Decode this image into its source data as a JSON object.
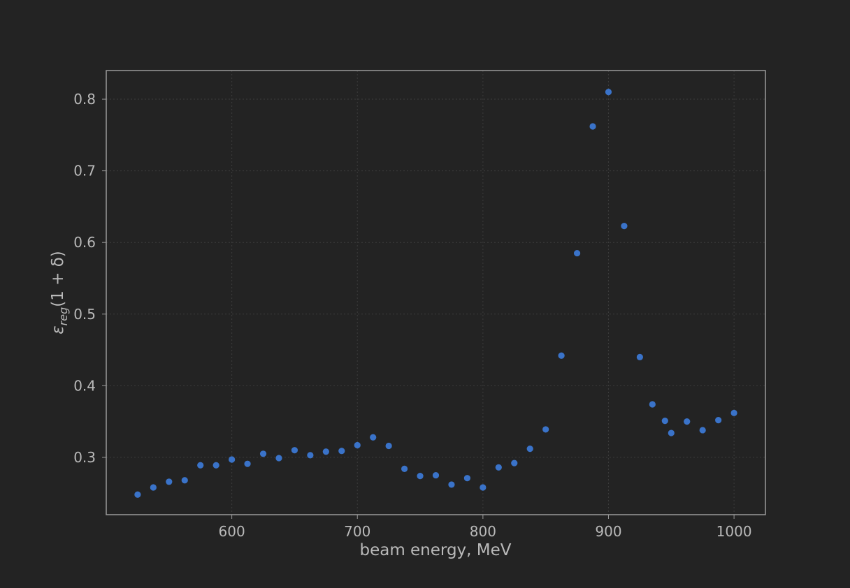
{
  "chart_data": {
    "type": "scatter",
    "xlabel": "beam energy, MeV",
    "ylabel": "ε_reg(1 + δ)",
    "ylabel_parts": {
      "base": "ε",
      "subscript": "reg",
      "rest": "(1 + δ)"
    },
    "xlim": [
      500,
      1025
    ],
    "ylim": [
      0.22,
      0.84
    ],
    "xticks": [
      600,
      700,
      800,
      900,
      1000
    ],
    "xtick_labels": [
      "600",
      "700",
      "800",
      "900",
      "1000"
    ],
    "yticks": [
      0.3,
      0.4,
      0.5,
      0.6,
      0.7,
      0.8
    ],
    "ytick_labels": [
      "0.3",
      "0.4",
      "0.5",
      "0.6",
      "0.7",
      "0.8"
    ],
    "grid": true,
    "colors": {
      "points": "#3a73c9",
      "background": "#232323",
      "text": "#b9b9b9",
      "frame": "#9a9a9a"
    },
    "series": [
      {
        "x": [
          525,
          537.5,
          550,
          562.5,
          575,
          587.5,
          600,
          612.5,
          625,
          637.5,
          650,
          662.5,
          675,
          687.5,
          700,
          712.5,
          725,
          737.5,
          750,
          762.5,
          775,
          787.5,
          800,
          812.5,
          825,
          837.5,
          850,
          862.5,
          875,
          887.5,
          900,
          912.5,
          925,
          935,
          945,
          950,
          962.5,
          975,
          987.5,
          1000
        ],
        "y": [
          0.248,
          0.258,
          0.266,
          0.268,
          0.289,
          0.289,
          0.297,
          0.291,
          0.305,
          0.299,
          0.31,
          0.303,
          0.308,
          0.309,
          0.317,
          0.328,
          0.316,
          0.284,
          0.274,
          0.275,
          0.262,
          0.271,
          0.258,
          0.286,
          0.292,
          0.312,
          0.339,
          0.442,
          0.585,
          0.762,
          0.81,
          0.623,
          0.44,
          0.374,
          0.351,
          0.334,
          0.35,
          0.338,
          0.352,
          0.362
        ]
      }
    ]
  }
}
